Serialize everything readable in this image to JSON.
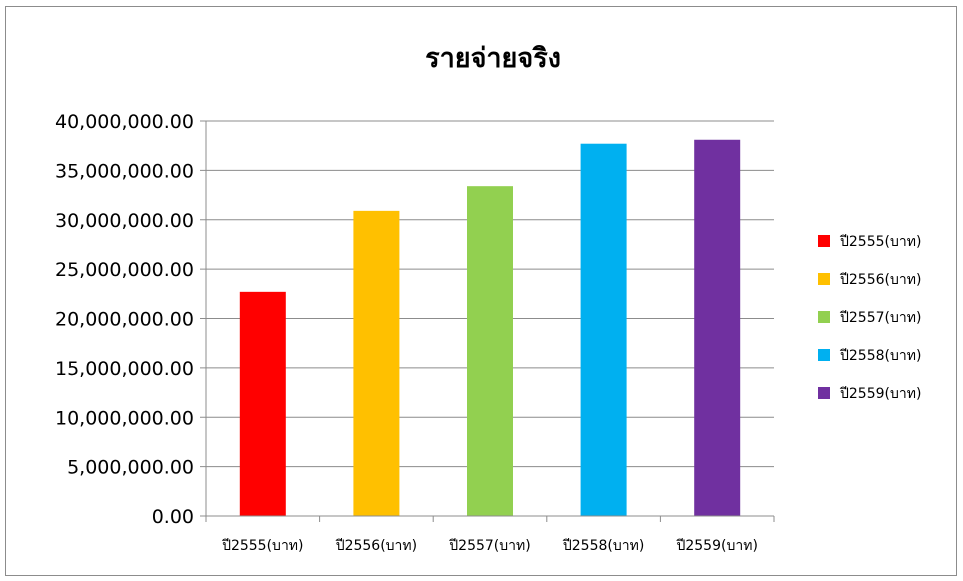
{
  "chart_data": {
    "type": "bar",
    "title": "รายจ่ายจริง",
    "categories": [
      "ปี2555(บาท)",
      "ปี2556(บาท)",
      "ปี2557(บาท)",
      "ปี2558(บาท)",
      "ปี2559(บาท)"
    ],
    "values": [
      22700000,
      30900000,
      33400000,
      37700000,
      38100000
    ],
    "colors": [
      "#ff0000",
      "#ffc000",
      "#92d050",
      "#00b0f0",
      "#7030a0"
    ],
    "ylim": [
      0,
      40000000
    ],
    "yticks": [
      0,
      5000000,
      10000000,
      15000000,
      20000000,
      25000000,
      30000000,
      35000000,
      40000000
    ],
    "ytick_labels": [
      "0.00",
      "5,000,000.00",
      "10,000,000.00",
      "15,000,000.00",
      "20,000,000.00",
      "25,000,000.00",
      "30,000,000.00",
      "35,000,000.00",
      "40,000,000.00"
    ],
    "legend": [
      "ปี2555(บาท)",
      "ปี2556(บาท)",
      "ปี2557(บาท)",
      "ปี2558(บาท)",
      "ปี2559(บาท)"
    ],
    "legend_position": "right",
    "grid": true
  }
}
